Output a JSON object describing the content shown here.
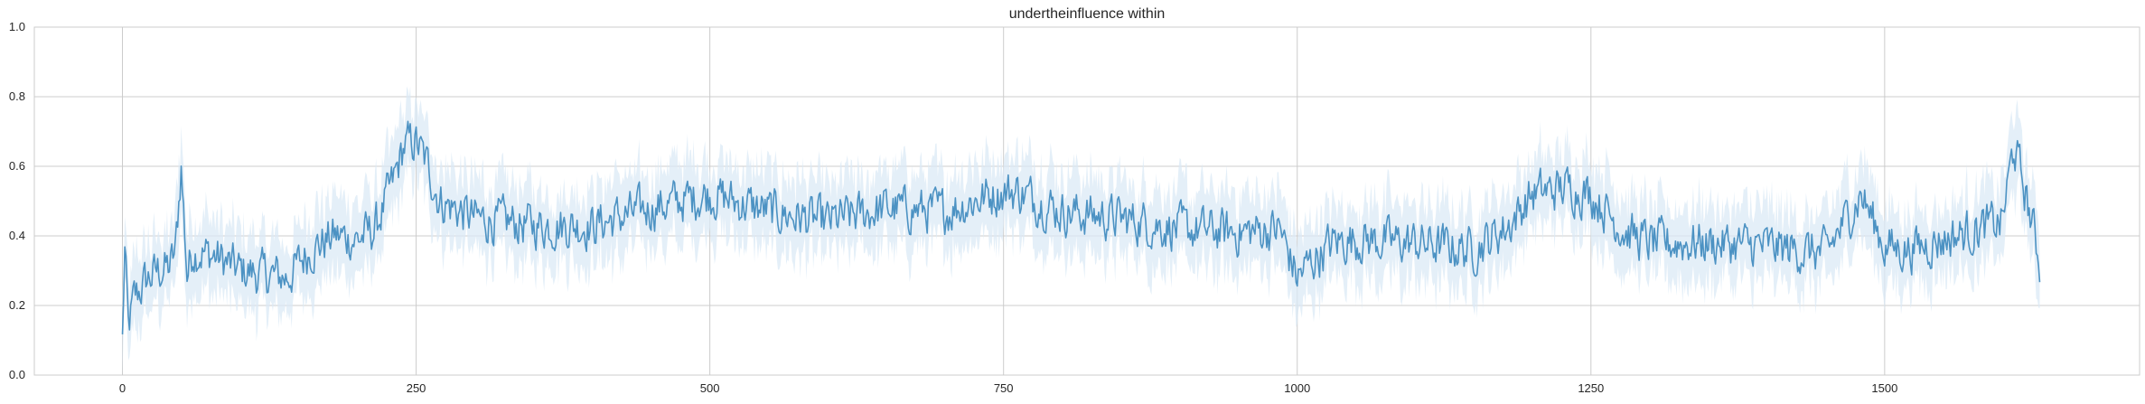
{
  "chart_data": {
    "type": "line",
    "title": "undertheinfluence within",
    "xlabel": "",
    "ylabel": "",
    "xlim": [
      -75,
      1717
    ],
    "ylim": [
      0,
      1.0
    ],
    "xticks": [
      0,
      250,
      500,
      750,
      1000,
      1250,
      1500
    ],
    "yticks": [
      0.0,
      0.2,
      0.4,
      0.6,
      0.8,
      1.0
    ],
    "xtick_labels": [
      "0",
      "250",
      "500",
      "750",
      "1000",
      "1250",
      "1500"
    ],
    "ytick_labels": [
      "0.0",
      "0.2",
      "0.4",
      "0.6",
      "0.8",
      "1.0"
    ],
    "grid": true,
    "line_color": "#4c92c3",
    "band_color": "#dbe9f5",
    "n_points": 1633,
    "series": [
      {
        "x_start": 0,
        "x_end": 1632,
        "anchors_x": [
          0,
          2,
          5,
          10,
          20,
          30,
          40,
          45,
          50,
          55,
          60,
          80,
          100,
          120,
          140,
          160,
          180,
          200,
          215,
          230,
          240,
          250,
          260,
          270,
          300,
          350,
          400,
          450,
          500,
          550,
          600,
          650,
          700,
          740,
          760,
          800,
          850,
          900,
          950,
          985,
          1000,
          1010,
          1030,
          1050,
          1100,
          1150,
          1180,
          1200,
          1230,
          1250,
          1280,
          1300,
          1350,
          1400,
          1450,
          1480,
          1500,
          1520,
          1550,
          1580,
          1600,
          1610,
          1620,
          1632
        ],
        "anchors_y": [
          0.1,
          0.36,
          0.13,
          0.22,
          0.27,
          0.3,
          0.31,
          0.35,
          0.6,
          0.29,
          0.36,
          0.34,
          0.3,
          0.29,
          0.28,
          0.36,
          0.4,
          0.39,
          0.42,
          0.55,
          0.66,
          0.67,
          0.6,
          0.5,
          0.45,
          0.43,
          0.43,
          0.48,
          0.52,
          0.47,
          0.44,
          0.48,
          0.47,
          0.52,
          0.53,
          0.47,
          0.45,
          0.42,
          0.41,
          0.42,
          0.28,
          0.32,
          0.38,
          0.39,
          0.38,
          0.36,
          0.43,
          0.52,
          0.54,
          0.52,
          0.41,
          0.38,
          0.38,
          0.37,
          0.35,
          0.52,
          0.37,
          0.36,
          0.39,
          0.42,
          0.44,
          0.66,
          0.52,
          0.33
        ]
      }
    ]
  }
}
